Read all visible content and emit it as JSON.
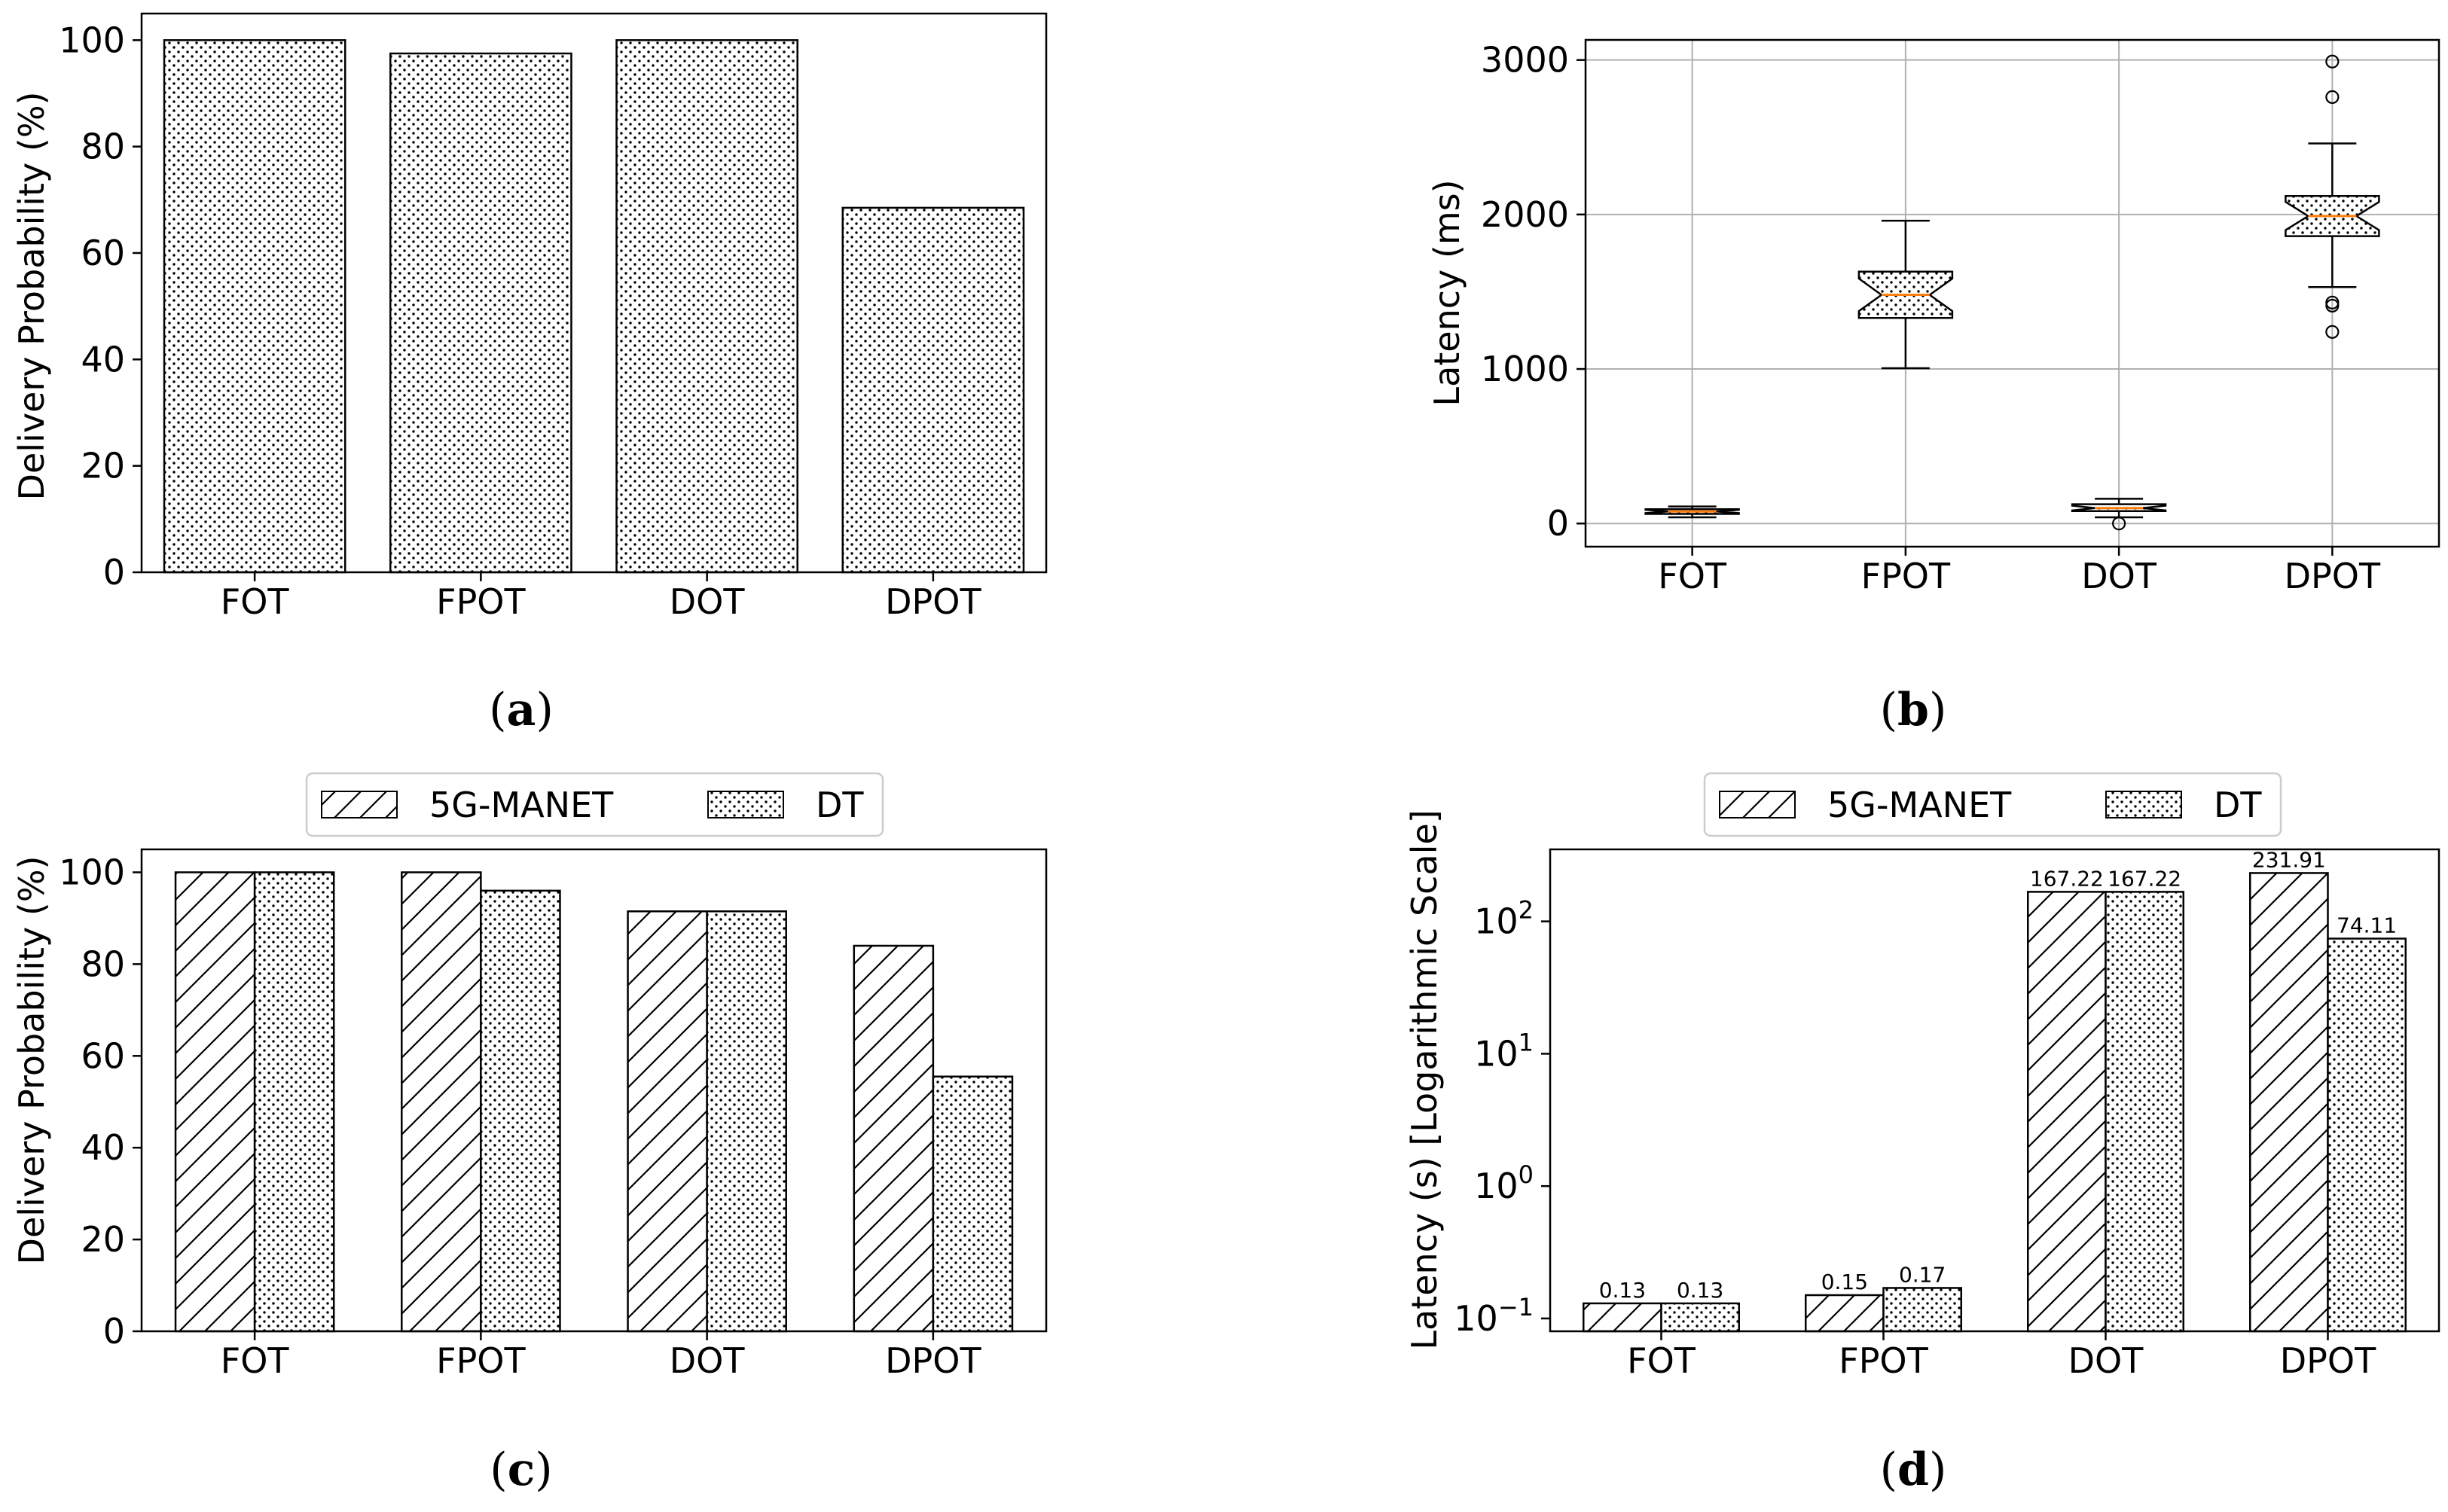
{
  "colors": {
    "bar_edge": "#000000",
    "bar_fill": "#ffffff",
    "grid": "#b0b0b0",
    "median": "#ff7f0e",
    "axis": "#000000"
  },
  "captions": {
    "a": "a",
    "b": "b",
    "c": "c",
    "d": "d"
  },
  "chart_data": [
    {
      "id": "a",
      "type": "bar",
      "title": "",
      "xlabel": "",
      "ylabel": "Delivery Probability (%)",
      "categories": [
        "FOT",
        "FPOT",
        "DOT",
        "DPOT"
      ],
      "values": [
        100,
        97.5,
        100,
        68.5
      ],
      "ylim": [
        0,
        105
      ],
      "yticks": [
        0,
        20,
        40,
        60,
        80,
        100
      ],
      "ytick_labels": [
        "0",
        "20",
        "40",
        "60",
        "80",
        "100"
      ],
      "pattern": "dots",
      "grid": false
    },
    {
      "id": "b",
      "type": "box",
      "title": "",
      "xlabel": "",
      "ylabel": "Latency (ms)",
      "categories": [
        "FOT",
        "FPOT",
        "DOT",
        "DPOT"
      ],
      "ylim": [
        -150,
        3130
      ],
      "yticks": [
        0,
        1000,
        2000,
        3000
      ],
      "ytick_labels": [
        "0",
        "1000",
        "2000",
        "3000"
      ],
      "grid": true,
      "notched": true,
      "boxes": [
        {
          "whisker_low": 40,
          "q1": 62,
          "median": 78,
          "q3": 92,
          "whisker_high": 110,
          "outliers": []
        },
        {
          "whisker_low": 1005,
          "q1": 1330,
          "median": 1480,
          "q3": 1630,
          "whisker_high": 1960,
          "outliers": []
        },
        {
          "whisker_low": 40,
          "q1": 80,
          "median": 100,
          "q3": 125,
          "whisker_high": 160,
          "outliers": [
            0
          ]
        },
        {
          "whisker_low": 1530,
          "q1": 1860,
          "median": 1990,
          "q3": 2120,
          "whisker_high": 2460,
          "outliers": [
            2990,
            2760,
            1430,
            1410,
            1240
          ]
        }
      ]
    },
    {
      "id": "c",
      "type": "bar",
      "title": "",
      "xlabel": "",
      "ylabel": "Delivery Probability (%)",
      "categories": [
        "FOT",
        "FPOT",
        "DOT",
        "DPOT"
      ],
      "series": [
        {
          "name": "5G-MANET",
          "pattern": "hatch",
          "values": [
            100,
            100,
            91.5,
            84
          ]
        },
        {
          "name": "DT",
          "pattern": "dots",
          "values": [
            100,
            96,
            91.5,
            55.5
          ]
        }
      ],
      "ylim": [
        0,
        105
      ],
      "yticks": [
        0,
        20,
        40,
        60,
        80,
        100
      ],
      "ytick_labels": [
        "0",
        "20",
        "40",
        "60",
        "80",
        "100"
      ],
      "legend": "top-center",
      "grid": false
    },
    {
      "id": "d",
      "type": "bar",
      "yscale": "log",
      "title": "",
      "xlabel": "",
      "ylabel": "Latency (s) [Logarithmic Scale]",
      "categories": [
        "FOT",
        "FPOT",
        "DOT",
        "DPOT"
      ],
      "series": [
        {
          "name": "5G-MANET",
          "pattern": "hatch",
          "values": [
            0.13,
            0.15,
            167.22,
            231.91
          ],
          "labels": [
            "0.13",
            "0.15",
            "167.22",
            "231.91"
          ]
        },
        {
          "name": "DT",
          "pattern": "dots",
          "values": [
            0.13,
            0.17,
            167.22,
            74.11
          ],
          "labels": [
            "0.13",
            "0.17",
            "167.22",
            "74.11"
          ]
        }
      ],
      "ylim": [
        0.08,
        350
      ],
      "yticks": [
        0.1,
        1,
        10,
        100
      ],
      "ytick_bases": [
        "10",
        "10",
        "10",
        "10"
      ],
      "ytick_exponents": [
        "−1",
        "0",
        "1",
        "2"
      ],
      "legend": "top-center",
      "grid": false
    }
  ]
}
